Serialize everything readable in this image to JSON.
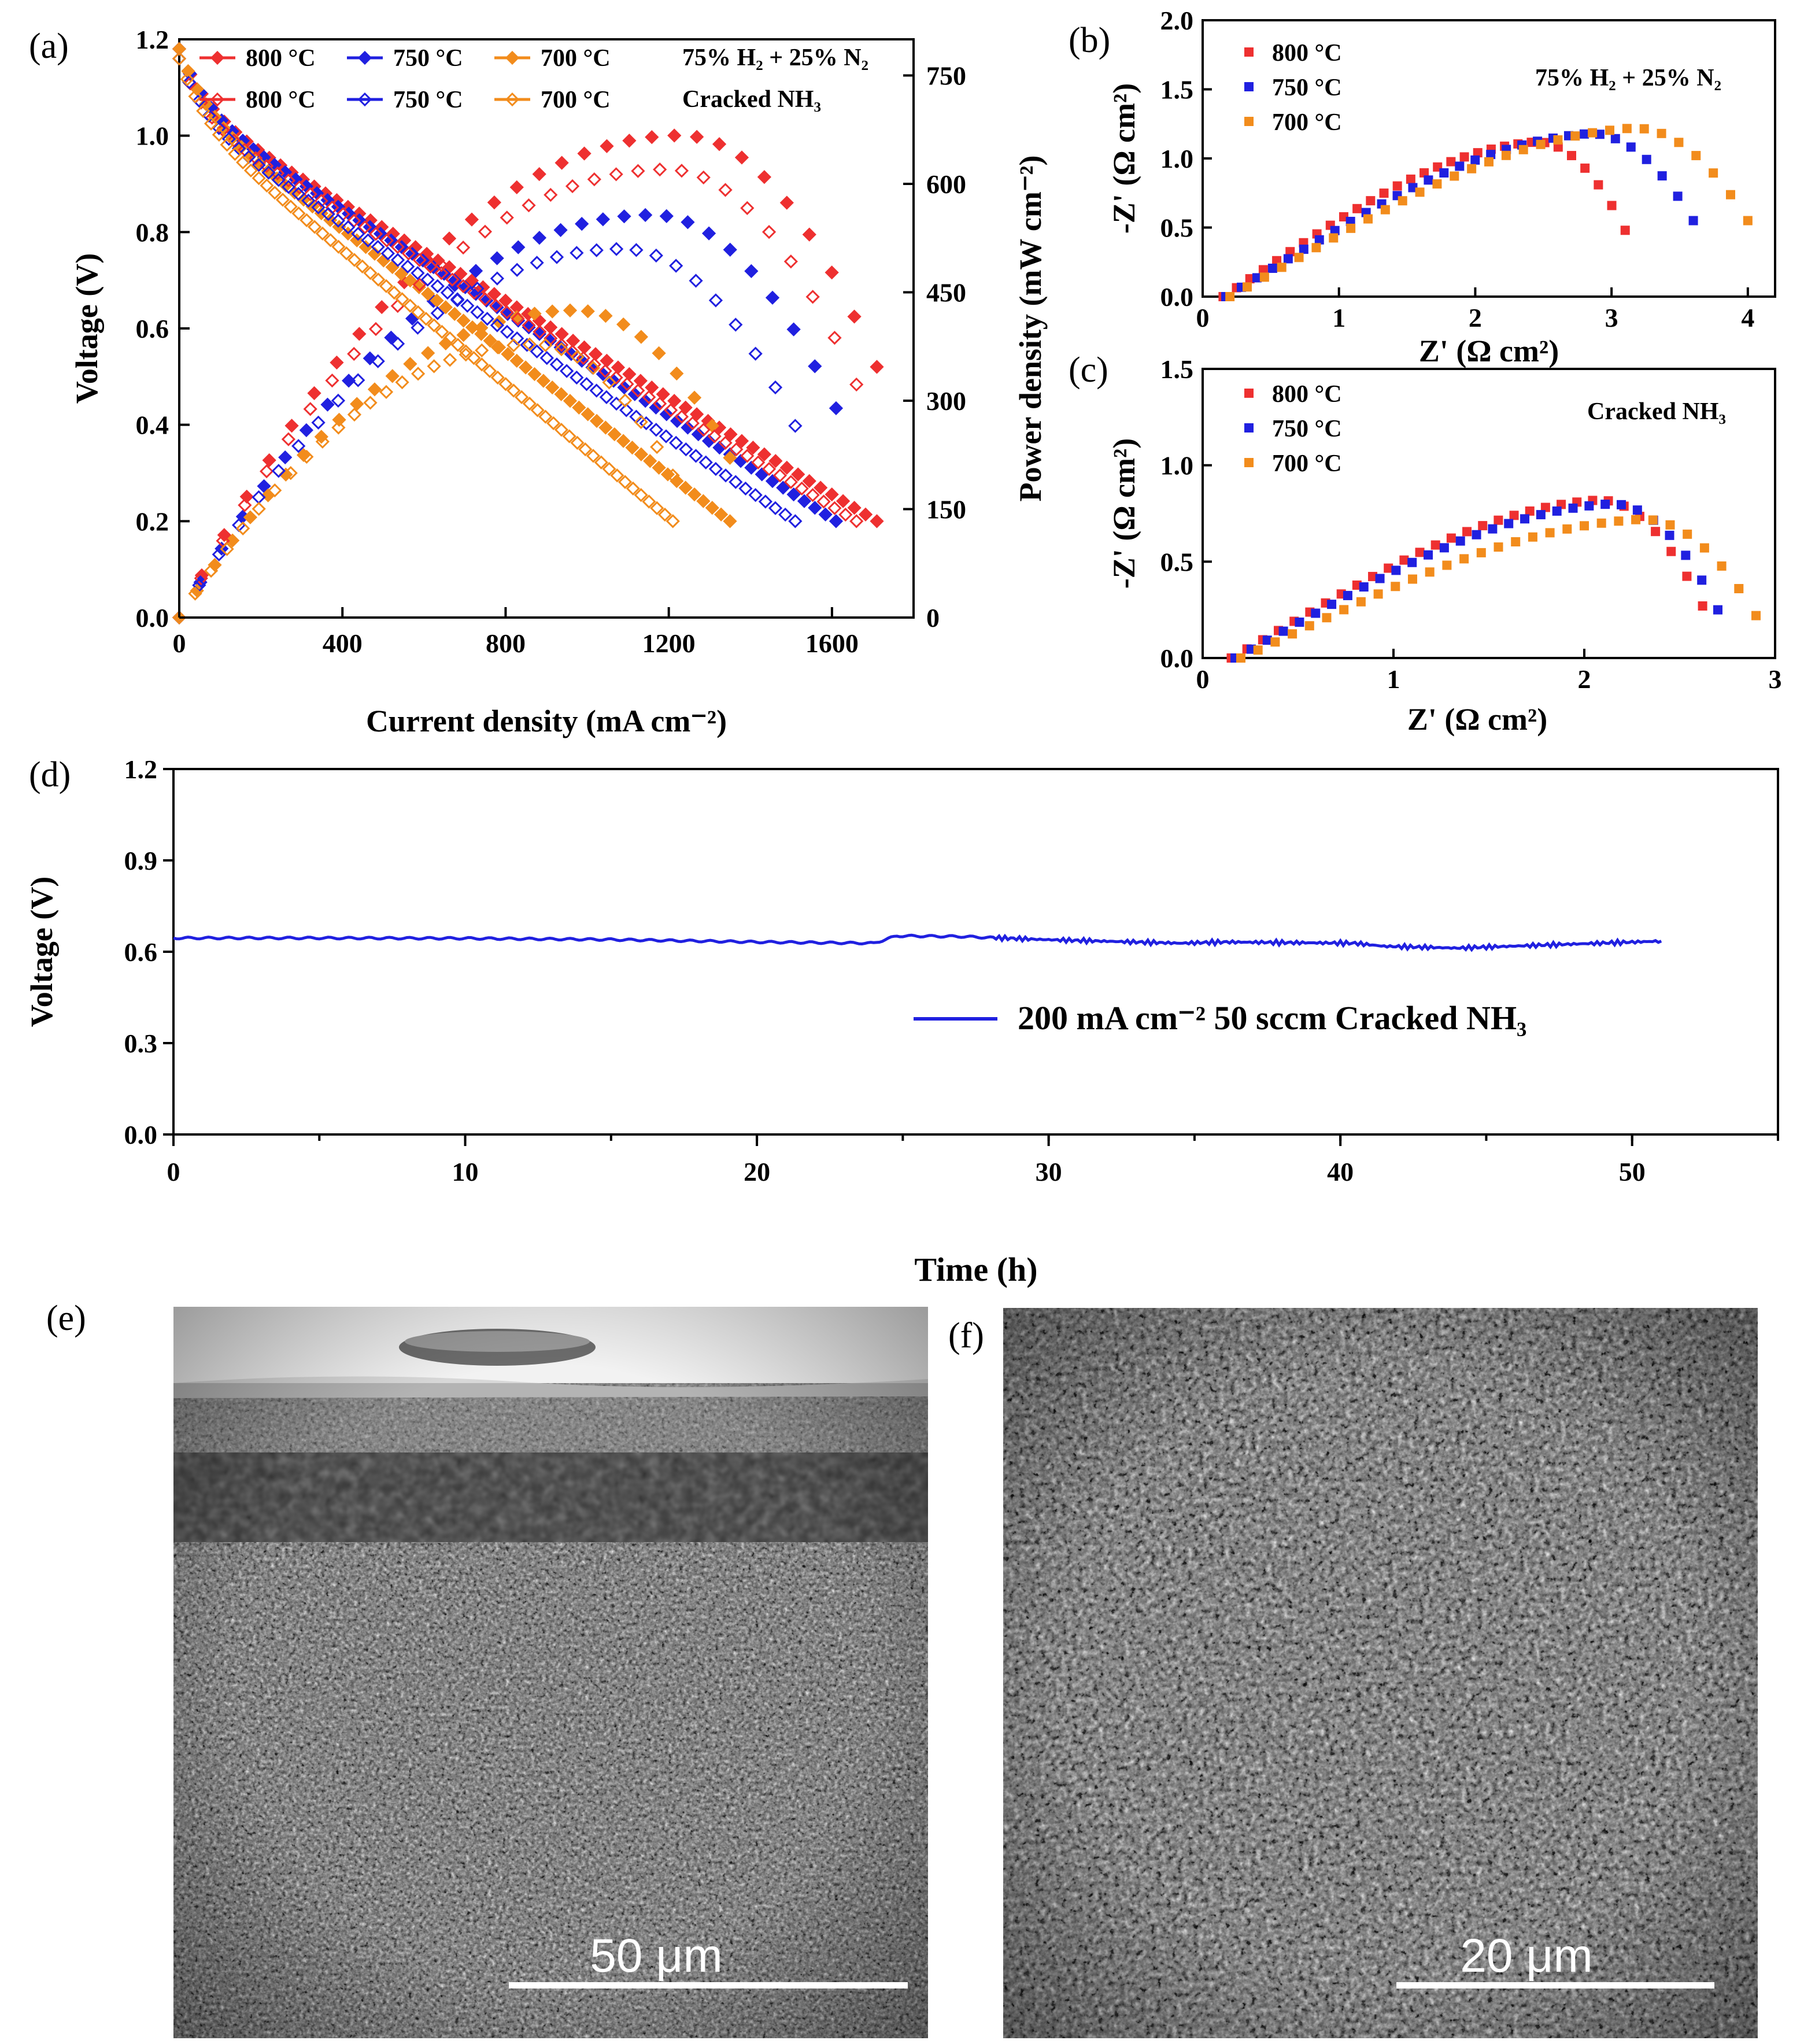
{
  "figure": {
    "panel_a": "(a)",
    "panel_b": "(b)",
    "panel_c": "(c)",
    "panel_d": "(d)",
    "panel_e": "(e)",
    "panel_f": "(f)"
  },
  "colors": {
    "red": "#ee3030",
    "blue": "#2020e0",
    "orange": "#f28c1c"
  },
  "chart_data": [
    {
      "id": "a",
      "type": "line",
      "xlabel": "Current density (mA cm⁻²)",
      "ylabel": "Voltage (V)",
      "y2label": "Power density (mW cm⁻²)",
      "xlim": [
        0,
        1800
      ],
      "ylim": [
        0,
        1.2
      ],
      "y2lim": [
        0,
        800
      ],
      "xticks": [
        "0",
        "400",
        "800",
        "1200",
        "1600"
      ],
      "yticks": [
        "0.0",
        "0.2",
        "0.4",
        "0.6",
        "0.8",
        "1.0",
        "1.2"
      ],
      "y2ticks": [
        "0",
        "150",
        "300",
        "450",
        "600",
        "750"
      ],
      "legend_group_1": "75% H₂ + 25% N₂",
      "legend_group_2": "Cracked NH₃",
      "series": [
        {
          "name": "800 °C",
          "fuel": "75% H₂ + 25% N₂",
          "color": "red",
          "filled": true,
          "ocv": 1.18,
          "jmax": 1710,
          "pmax": 667
        },
        {
          "name": "750 °C",
          "fuel": "75% H₂ + 25% N₂",
          "color": "blue",
          "filled": true,
          "ocv": 1.18,
          "jmax": 1610,
          "pmax": 557
        },
        {
          "name": "700 °C",
          "fuel": "75% H₂ + 25% N₂",
          "color": "orange",
          "filled": true,
          "ocv": 1.18,
          "jmax": 1350,
          "pmax": 425
        },
        {
          "name": "800 °C",
          "fuel": "Cracked NH₃",
          "color": "red",
          "filled": false,
          "ocv": 1.16,
          "jmax": 1660,
          "pmax": 620
        },
        {
          "name": "750 °C",
          "fuel": "Cracked NH₃",
          "color": "blue",
          "filled": false,
          "ocv": 1.16,
          "jmax": 1510,
          "pmax": 510
        },
        {
          "name": "700 °C",
          "fuel": "Cracked NH₃",
          "color": "orange",
          "filled": false,
          "ocv": 1.16,
          "jmax": 1210,
          "pmax": 378
        }
      ]
    },
    {
      "id": "b",
      "type": "scatter",
      "xlabel": "Z' (Ω cm²)",
      "ylabel": "-Z' (Ω cm²)",
      "xlim": [
        0,
        4.2
      ],
      "ylim": [
        0,
        2.0
      ],
      "xticks": [
        "0",
        "1",
        "2",
        "3",
        "4"
      ],
      "yticks": [
        "0.0",
        "0.5",
        "1.0",
        "1.5",
        "2.0"
      ],
      "annotation": "75% H₂ + 25% N₂",
      "series": [
        {
          "name": "800 °C",
          "color": "red",
          "r0": 0.15,
          "r1": 3.1,
          "peak": 1.12,
          "tail": 0.48
        },
        {
          "name": "750 °C",
          "color": "blue",
          "r0": 0.17,
          "r1": 3.6,
          "peak": 1.18,
          "tail": 0.55
        },
        {
          "name": "700 °C",
          "color": "orange",
          "r0": 0.2,
          "r1": 4.0,
          "peak": 1.22,
          "tail": 0.55
        }
      ]
    },
    {
      "id": "c",
      "type": "scatter",
      "xlabel": "Z' (Ω cm²)",
      "ylabel": "-Z' (Ω cm²)",
      "xlim": [
        0,
        3
      ],
      "ylim": [
        0,
        1.5
      ],
      "xticks": [
        "0",
        "1",
        "2",
        "3"
      ],
      "yticks": [
        "0.0",
        "0.5",
        "1.0",
        "1.5"
      ],
      "annotation": "Cracked NH₃",
      "series": [
        {
          "name": "800 °C",
          "color": "red",
          "r0": 0.15,
          "r1": 2.62,
          "peak": 0.82,
          "tail": 0.27
        },
        {
          "name": "750 °C",
          "color": "blue",
          "r0": 0.17,
          "r1": 2.7,
          "peak": 0.8,
          "tail": 0.25
        },
        {
          "name": "700 °C",
          "color": "orange",
          "r0": 0.2,
          "r1": 2.9,
          "peak": 0.72,
          "tail": 0.22
        }
      ]
    },
    {
      "id": "d",
      "type": "line",
      "xlabel": "Time (h)",
      "ylabel": "Voltage (V)",
      "xlim": [
        0,
        55
      ],
      "ylim": [
        0,
        1.2
      ],
      "xticks": [
        "0",
        "10",
        "20",
        "30",
        "40",
        "50"
      ],
      "yticks": [
        "0.0",
        "0.3",
        "0.6",
        "0.9",
        "1.2"
      ],
      "legend": "200 mA cm⁻²  50 sccm Cracked NH₃",
      "series": [
        {
          "name": "200 mA cm⁻² 50 sccm Cracked NH₃",
          "color": "blue",
          "x": [
            0,
            5,
            10,
            15,
            20,
            24,
            24.8,
            27,
            29.8,
            34.5,
            36,
            40.5,
            41.5,
            44,
            47,
            51
          ],
          "y": [
            0.645,
            0.645,
            0.644,
            0.64,
            0.632,
            0.628,
            0.652,
            0.65,
            0.64,
            0.628,
            0.632,
            0.628,
            0.618,
            0.612,
            0.622,
            0.635
          ]
        }
      ]
    }
  ],
  "sem": {
    "e_scale": "50 μm",
    "f_scale": "20 μm"
  }
}
